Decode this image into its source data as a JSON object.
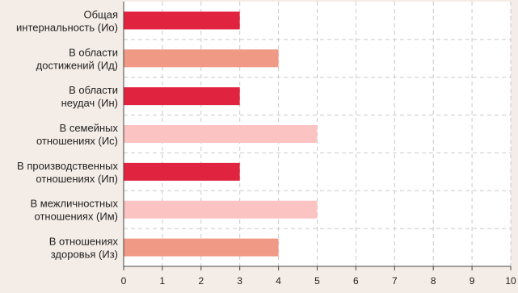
{
  "chart_data": {
    "type": "bar",
    "orientation": "horizontal",
    "title": "",
    "xlabel": "",
    "ylabel": "",
    "xlim": [
      0,
      10
    ],
    "x_ticks": [
      "0",
      "1",
      "2",
      "3",
      "4",
      "5",
      "6",
      "7",
      "8",
      "9",
      "10"
    ],
    "grid": true,
    "categories": [
      [
        "Общая",
        "интернальность (Ио)"
      ],
      [
        "В области",
        "достижений (Ид)"
      ],
      [
        "В области",
        "неудач (Ин)"
      ],
      [
        "В семейных",
        "отношениях (Ис)"
      ],
      [
        "В производственных",
        "отношениях (Ип)"
      ],
      [
        "В межличностных",
        "отношениях (Им)"
      ],
      [
        "В отношениях",
        "здоровья (Из)"
      ]
    ],
    "values": [
      3,
      4,
      3,
      5,
      3,
      5,
      4
    ],
    "bar_colors": [
      "#e0233f",
      "#f09a86",
      "#e0233f",
      "#fbc3c2",
      "#e0233f",
      "#fbc3c2",
      "#f09a86"
    ]
  }
}
